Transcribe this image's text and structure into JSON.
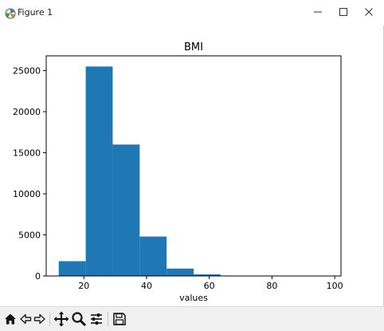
{
  "window": {
    "title": "Figure 1",
    "minimize_icon": "minimize-icon",
    "maximize_icon": "maximize-icon",
    "close_icon": "close-icon"
  },
  "toolbar": {
    "buttons": [
      "home-icon",
      "back-icon",
      "forward-icon",
      "pan-icon",
      "zoom-icon",
      "configure-subplots-icon",
      "save-icon"
    ]
  },
  "colors": {
    "bar": "#1f77b4",
    "axes": "#000000",
    "toolbar_bg": "#f0f0f0"
  },
  "chart_data": {
    "type": "bar",
    "title": "BMI",
    "xlabel": "values",
    "ylabel": "",
    "xlim": [
      8,
      102
    ],
    "ylim": [
      0,
      26800
    ],
    "xticks": [
      20,
      40,
      60,
      80,
      100
    ],
    "yticks": [
      0,
      5000,
      10000,
      15000,
      20000,
      25000
    ],
    "bins": [
      {
        "x0": 12.0,
        "x1": 20.6,
        "count": 1800
      },
      {
        "x0": 20.6,
        "x1": 29.2,
        "count": 25500
      },
      {
        "x0": 29.2,
        "x1": 37.8,
        "count": 16000
      },
      {
        "x0": 37.8,
        "x1": 46.4,
        "count": 4800
      },
      {
        "x0": 46.4,
        "x1": 55.0,
        "count": 900
      },
      {
        "x0": 55.0,
        "x1": 63.6,
        "count": 200
      },
      {
        "x0": 63.6,
        "x1": 72.2,
        "count": 30
      },
      {
        "x0": 72.2,
        "x1": 80.8,
        "count": 10
      },
      {
        "x0": 80.8,
        "x1": 89.4,
        "count": 5
      },
      {
        "x0": 89.4,
        "x1": 98.0,
        "count": 5
      }
    ]
  }
}
